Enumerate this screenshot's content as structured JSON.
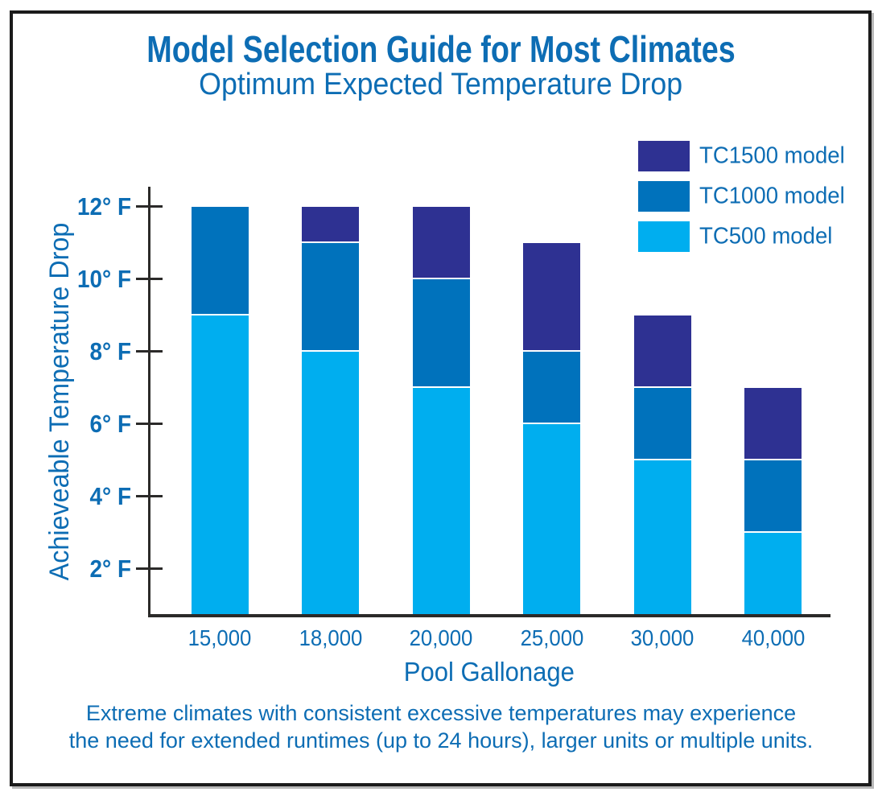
{
  "colors": {
    "tc1500": "#2E3192",
    "tc1000": "#0072BC",
    "tc500": "#00AEEF",
    "text": "#0D6DB4",
    "axis": "#2B2A29",
    "frame": "#1B1B1B"
  },
  "legend": {
    "items": [
      {
        "label": "TC1500 model",
        "color_key": "tc1500"
      },
      {
        "label": "TC1000 model",
        "color_key": "tc1000"
      },
      {
        "label": "TC500 model",
        "color_key": "tc500"
      }
    ]
  },
  "chart_data": {
    "type": "bar",
    "stacked": true,
    "title": "Model Selection Guide for Most Climates",
    "subtitle": "Optimum Expected Temperature Drop",
    "xlabel": "Pool Gallonage",
    "ylabel": "Achieveable Temperature Drop",
    "units": "°F",
    "categories": [
      "15,000",
      "18,000",
      "20,000",
      "25,000",
      "30,000",
      "40,000"
    ],
    "series": [
      {
        "name": "TC500 model",
        "color_key": "tc500",
        "values": [
          9,
          8,
          7,
          6,
          5,
          3
        ]
      },
      {
        "name": "TC1000 model",
        "color_key": "tc1000",
        "values": [
          3,
          3,
          3,
          2,
          2,
          2
        ]
      },
      {
        "name": "TC1500 model",
        "color_key": "tc1500",
        "values": [
          0,
          1,
          2,
          3,
          2,
          2
        ]
      }
    ],
    "stack_totals": [
      12,
      12,
      12,
      11,
      9,
      7
    ],
    "y_axis": {
      "tick_values": [
        2,
        4,
        6,
        8,
        10,
        12
      ],
      "tick_labels": [
        "2° F",
        "4° F",
        "6° F",
        "8° F",
        "10° F",
        "12° F"
      ],
      "range": [
        0.7,
        12.6
      ],
      "grid": false
    },
    "legend_position": "top-right"
  },
  "footnote": {
    "line1": "Extreme climates with consistent excessive temperatures may experience",
    "line2": "the need for extended runtimes (up to 24 hours), larger units or multiple units."
  }
}
